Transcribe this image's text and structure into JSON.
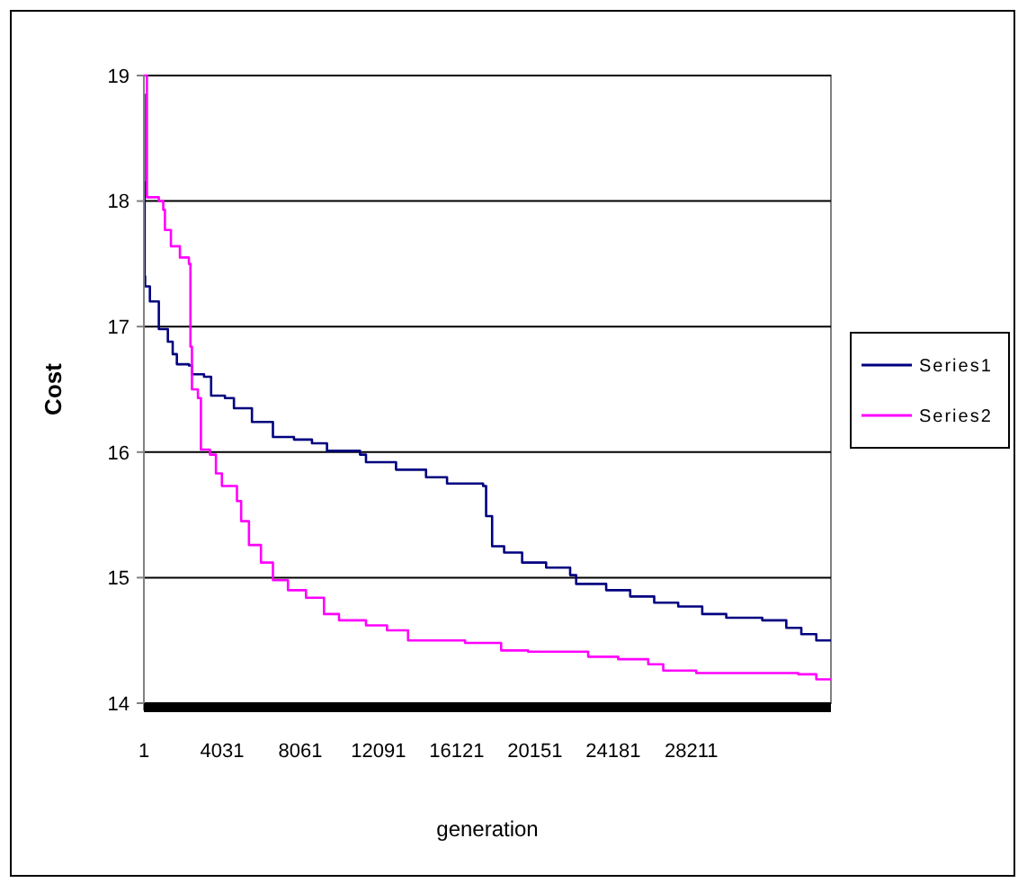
{
  "chart_data": {
    "type": "step",
    "xlabel": "generation",
    "ylabel": "Cost",
    "xlim": [
      1,
      35400
    ],
    "ylim": [
      14,
      19
    ],
    "xticks": [
      1,
      4031,
      8061,
      12091,
      16121,
      20151,
      24181,
      28211
    ],
    "yticks": [
      14,
      15,
      16,
      17,
      18,
      19
    ],
    "grid": "y",
    "legend": "right",
    "series": [
      {
        "name": "Series1",
        "color": "#000080",
        "x": [
          1,
          20,
          40,
          65,
          310,
          771,
          1236,
          1486,
          1700,
          2321,
          2478,
          3100,
          3465,
          4177,
          4641,
          5569,
          6650,
          7734,
          8662,
          9435,
          11137,
          11445,
          12993,
          14538,
          15620,
          17478,
          17633,
          17943,
          18561,
          19489,
          20726,
          21963,
          22273,
          23820,
          25057,
          26294,
          27531,
          28769,
          30006,
          31862,
          33100,
          33873,
          34646,
          35400
        ],
        "values": [
          18.85,
          18.15,
          17.4,
          17.32,
          17.2,
          16.98,
          16.88,
          16.78,
          16.7,
          16.69,
          16.62,
          16.6,
          16.45,
          16.43,
          16.35,
          16.24,
          16.12,
          16.1,
          16.07,
          16.01,
          15.98,
          15.92,
          15.86,
          15.8,
          15.75,
          15.73,
          15.49,
          15.25,
          15.2,
          15.12,
          15.08,
          15.02,
          14.95,
          14.9,
          14.85,
          14.8,
          14.77,
          14.71,
          14.68,
          14.66,
          14.6,
          14.55,
          14.5,
          14.5
        ]
      },
      {
        "name": "Series2",
        "color": "#ff00ff",
        "x": [
          1,
          157,
          771,
          1000,
          1085,
          1393,
          1857,
          2321,
          2400,
          2478,
          2785,
          2940,
          3404,
          3713,
          4021,
          4796,
          5012,
          5414,
          6033,
          6650,
          7425,
          8353,
          9281,
          10054,
          11445,
          12529,
          13611,
          16549,
          17633,
          18406,
          19798,
          22892,
          24439,
          25986,
          26760,
          28460,
          33718,
          34646,
          35400
        ],
        "values": [
          19,
          18.03,
          18,
          17.93,
          17.77,
          17.64,
          17.55,
          17.5,
          16.84,
          16.5,
          16.43,
          16.02,
          15.98,
          15.83,
          15.73,
          15.61,
          15.45,
          15.26,
          15.12,
          14.98,
          14.9,
          14.84,
          14.71,
          14.66,
          14.62,
          14.58,
          14.5,
          14.48,
          14.48,
          14.42,
          14.41,
          14.37,
          14.35,
          14.31,
          14.26,
          14.24,
          14.23,
          14.19,
          14.19
        ]
      }
    ]
  }
}
